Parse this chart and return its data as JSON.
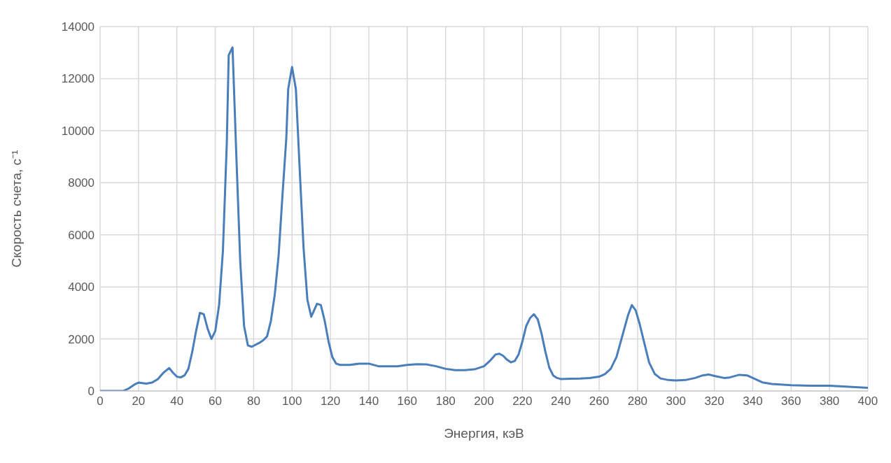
{
  "chart_data": {
    "type": "line",
    "xlabel": "Энергия, кэВ",
    "ylabel": "Скорость счета, с⁻¹",
    "xlim": [
      0,
      400
    ],
    "xticks": [
      0,
      20,
      40,
      60,
      80,
      100,
      120,
      140,
      160,
      180,
      200,
      220,
      240,
      260,
      280,
      300,
      320,
      340,
      360,
      380,
      400
    ],
    "ylim": [
      0,
      14000
    ],
    "yticks": [
      0,
      2000,
      4000,
      6000,
      8000,
      10000,
      12000,
      14000
    ],
    "grid": true,
    "legend": false,
    "marker": "none",
    "line_style": "solid",
    "series": [
      {
        "color": "#4a7ebb",
        "x": [
          0,
          12,
          15,
          18,
          20,
          24,
          27,
          30,
          33,
          36,
          38,
          40,
          42,
          44,
          46,
          48,
          50,
          52,
          54,
          56,
          58,
          60,
          62,
          64,
          66,
          67,
          69,
          71,
          73,
          75,
          77,
          79,
          83,
          85,
          87,
          89,
          91,
          93,
          95,
          97,
          98,
          100,
          102,
          104,
          106,
          108,
          110,
          113,
          115,
          117,
          119,
          121,
          123,
          125,
          130,
          135,
          140,
          145,
          150,
          155,
          160,
          165,
          170,
          175,
          180,
          185,
          190,
          195,
          200,
          203,
          206,
          208,
          210,
          212,
          214,
          216,
          218,
          220,
          222,
          224,
          226,
          228,
          230,
          232,
          234,
          236,
          238,
          240,
          245,
          250,
          255,
          260,
          263,
          266,
          269,
          272,
          275,
          277,
          279,
          281,
          283,
          286,
          289,
          292,
          296,
          300,
          305,
          310,
          314,
          317,
          320,
          325,
          328,
          333,
          337,
          340,
          345,
          350,
          360,
          370,
          380,
          390,
          400
        ],
        "values": [
          0,
          0,
          100,
          250,
          320,
          280,
          320,
          450,
          700,
          880,
          700,
          550,
          520,
          600,
          850,
          1500,
          2300,
          3000,
          2950,
          2400,
          2000,
          2300,
          3300,
          5400,
          9500,
          12900,
          13200,
          9000,
          5000,
          2500,
          1750,
          1700,
          1850,
          1950,
          2100,
          2700,
          3700,
          5200,
          7500,
          9700,
          11600,
          12450,
          11600,
          8500,
          5500,
          3500,
          2850,
          3350,
          3300,
          2700,
          1900,
          1300,
          1050,
          1000,
          1000,
          1050,
          1050,
          950,
          950,
          950,
          1000,
          1030,
          1020,
          950,
          850,
          800,
          800,
          830,
          950,
          1150,
          1400,
          1430,
          1350,
          1200,
          1100,
          1150,
          1400,
          1900,
          2500,
          2800,
          2950,
          2750,
          2200,
          1500,
          900,
          600,
          500,
          460,
          470,
          480,
          500,
          550,
          650,
          850,
          1300,
          2100,
          2900,
          3300,
          3100,
          2600,
          2000,
          1100,
          650,
          480,
          420,
          400,
          420,
          500,
          600,
          630,
          580,
          500,
          520,
          620,
          600,
          500,
          330,
          270,
          220,
          200,
          200,
          160,
          120
        ]
      }
    ]
  }
}
